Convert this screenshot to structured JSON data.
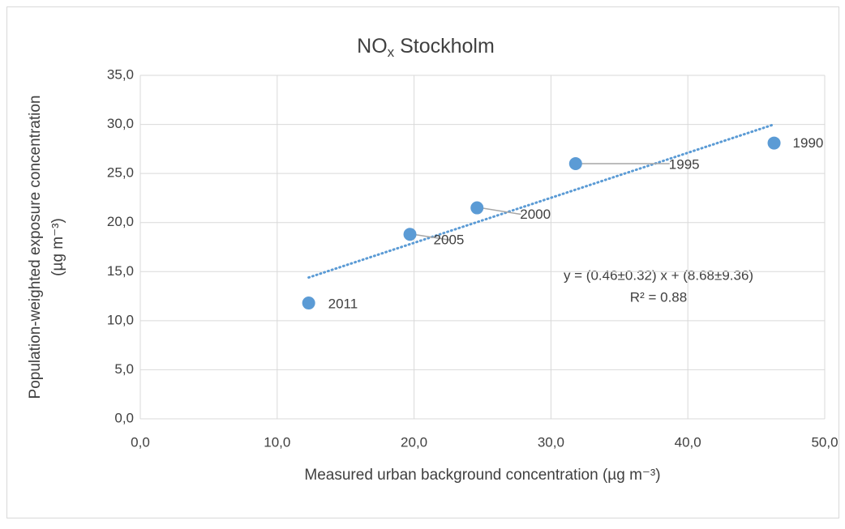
{
  "chart_data": {
    "type": "scatter",
    "title": [
      "NO",
      "x",
      " Stockholm"
    ],
    "x_label": "Measured urban background concentration (µg m⁻³)",
    "y_label": [
      "Population-weighted exposure concentration",
      "(µg m⁻³)"
    ],
    "series": [
      {
        "name": "NOx",
        "color": "#5b9bd5",
        "x": [
          12.3,
          19.7,
          24.6,
          31.8,
          46.3
        ],
        "values": [
          11.8,
          18.8,
          21.5,
          26.0,
          28.1
        ],
        "point_labels": [
          "2011",
          "2005",
          "2000",
          "1995",
          "1990"
        ]
      }
    ],
    "trendline": {
      "color": "#5b9bd5",
      "x": [
        12.3,
        46.3
      ],
      "values": [
        14.4,
        30.0
      ]
    },
    "annotations": [
      "y = (0.46±0.32)  x + (8.68±9.36)",
      "R² = 0.88"
    ],
    "xlim": [
      0,
      50
    ],
    "xticks": [
      {
        "value": 0,
        "label": "0,0"
      },
      {
        "value": 10,
        "label": "10,0"
      },
      {
        "value": 20,
        "label": "20,0"
      },
      {
        "value": 30,
        "label": "30,0"
      },
      {
        "value": 40,
        "label": "40,0"
      },
      {
        "value": 50,
        "label": "50,0"
      }
    ],
    "ylim": [
      0,
      35
    ],
    "yticks": [
      {
        "value": 0,
        "label": "0,0"
      },
      {
        "value": 5,
        "label": "5,0"
      },
      {
        "value": 10,
        "label": "10,0"
      },
      {
        "value": 15,
        "label": "15,0"
      },
      {
        "value": 20,
        "label": "20,0"
      },
      {
        "value": 25,
        "label": "25,0"
      },
      {
        "value": 30,
        "label": "30,0"
      },
      {
        "value": 35,
        "label": "35,0"
      }
    ],
    "grid": true
  }
}
